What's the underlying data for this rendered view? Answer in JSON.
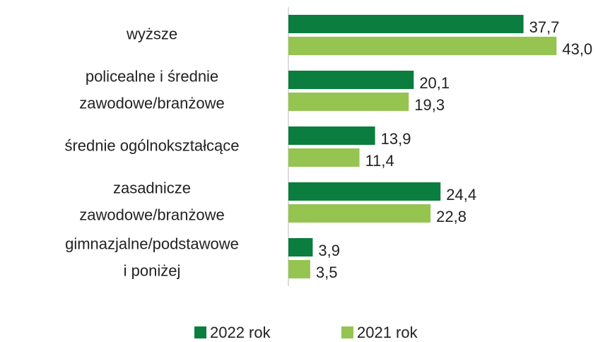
{
  "chart_data": {
    "type": "bar",
    "orientation": "horizontal",
    "categories": [
      "wyższe",
      "policealne i średnie\nzawodowe/branżowe",
      "średnie ogólnokształcące",
      "zasadnicze\nzawodowe/branżowe",
      "gimnazjalne/podstawowe\ni poniżej"
    ],
    "series": [
      {
        "name": "2022 rok",
        "color": "#0b7d3e",
        "values": [
          37.7,
          20.1,
          13.9,
          24.4,
          3.9
        ],
        "value_labels": [
          "37,7",
          "20,1",
          "13,9",
          "24,4",
          "3,9"
        ]
      },
      {
        "name": "2021 rok",
        "color": "#95c451",
        "values": [
          43.0,
          19.3,
          11.4,
          22.8,
          3.5
        ],
        "value_labels": [
          "43,0",
          "19,3",
          "11,4",
          "22,8",
          "3,5"
        ]
      }
    ],
    "xlim": [
      0,
      45
    ],
    "legend": "bottom"
  }
}
